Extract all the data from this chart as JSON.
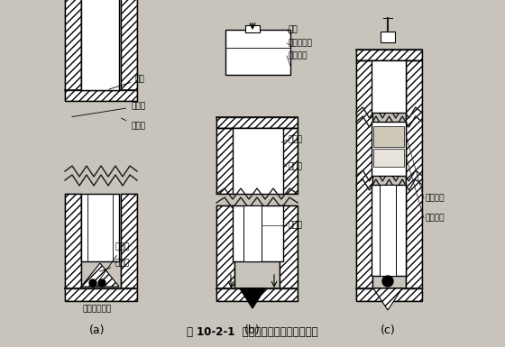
{
  "title": "图 10-2-1  辅助杆压人式标志埋设步骤",
  "bg_color": "#c8c4bc",
  "line_color": "#1a1a1a",
  "label_a": "(a)",
  "label_b": "(b)",
  "label_c": "(c)",
  "fig_w": 5.6,
  "fig_h": 3.85,
  "dpi": 100
}
